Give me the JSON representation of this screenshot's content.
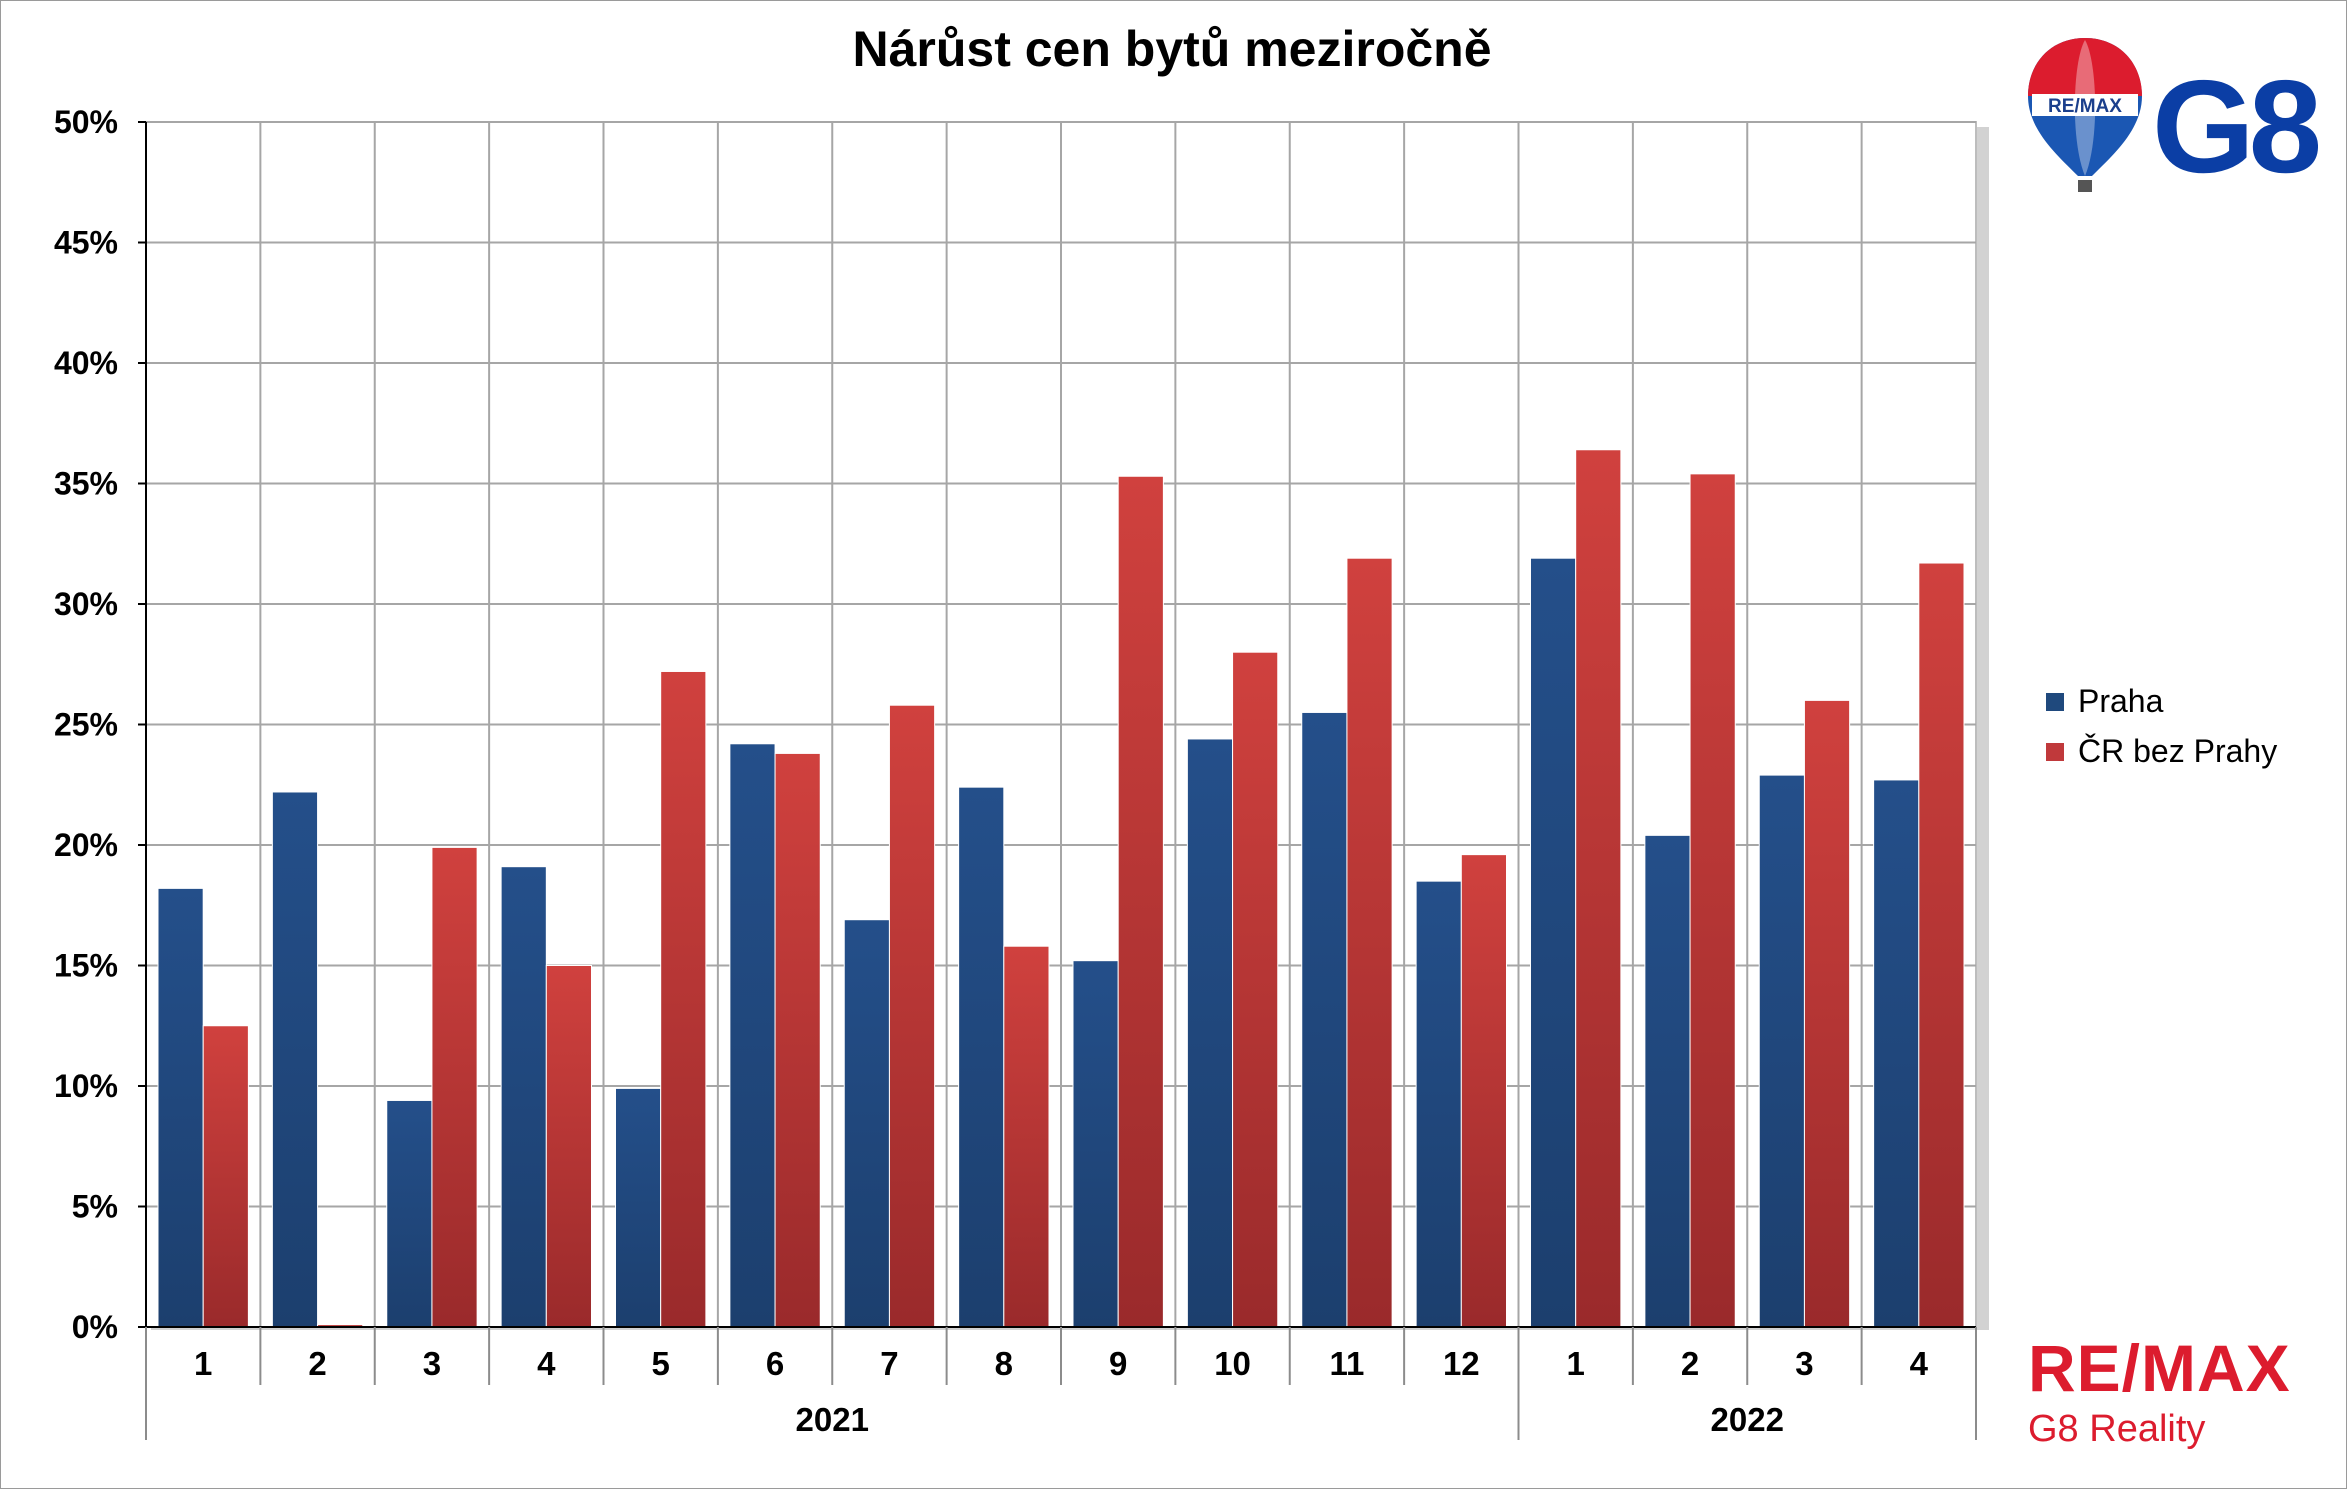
{
  "chart_data": {
    "type": "bar",
    "title": "Nárůst cen bytů meziročně",
    "xlabel": "",
    "ylabel": "",
    "categories": [
      "1",
      "2",
      "3",
      "4",
      "5",
      "6",
      "7",
      "8",
      "9",
      "10",
      "11",
      "12",
      "1",
      "2",
      "3",
      "4"
    ],
    "groups": [
      {
        "label": "2021",
        "count": 12
      },
      {
        "label": "2022",
        "count": 4
      }
    ],
    "ylim": [
      0,
      50
    ],
    "yticks": [
      0,
      5,
      10,
      15,
      20,
      25,
      30,
      35,
      40,
      45,
      50
    ],
    "ytick_labels": [
      "0%",
      "5%",
      "10%",
      "15%",
      "20%",
      "25%",
      "30%",
      "35%",
      "40%",
      "45%",
      "50%"
    ],
    "grid": true,
    "legend_position": "right",
    "series": [
      {
        "name": "Praha",
        "color": "#1f497d",
        "values": [
          18.2,
          22.2,
          9.4,
          19.1,
          9.9,
          24.2,
          16.9,
          22.4,
          15.2,
          24.4,
          25.5,
          18.5,
          31.9,
          20.4,
          22.9,
          22.7
        ]
      },
      {
        "name": "ČR bez Prahy",
        "color": "#c0393b",
        "values": [
          12.5,
          0.1,
          19.9,
          15.0,
          27.2,
          23.8,
          25.8,
          15.8,
          35.3,
          28.0,
          31.9,
          19.6,
          36.4,
          35.4,
          26.0,
          31.7
        ]
      }
    ]
  },
  "branding": {
    "balloon_text": "RE/MAX",
    "g8_text": "G8",
    "bottom_word": "RE/MAX",
    "bottom_sub": "G8 Reality",
    "brand_red": "#dc1c2e",
    "brand_blue": "#0b3ea5"
  }
}
